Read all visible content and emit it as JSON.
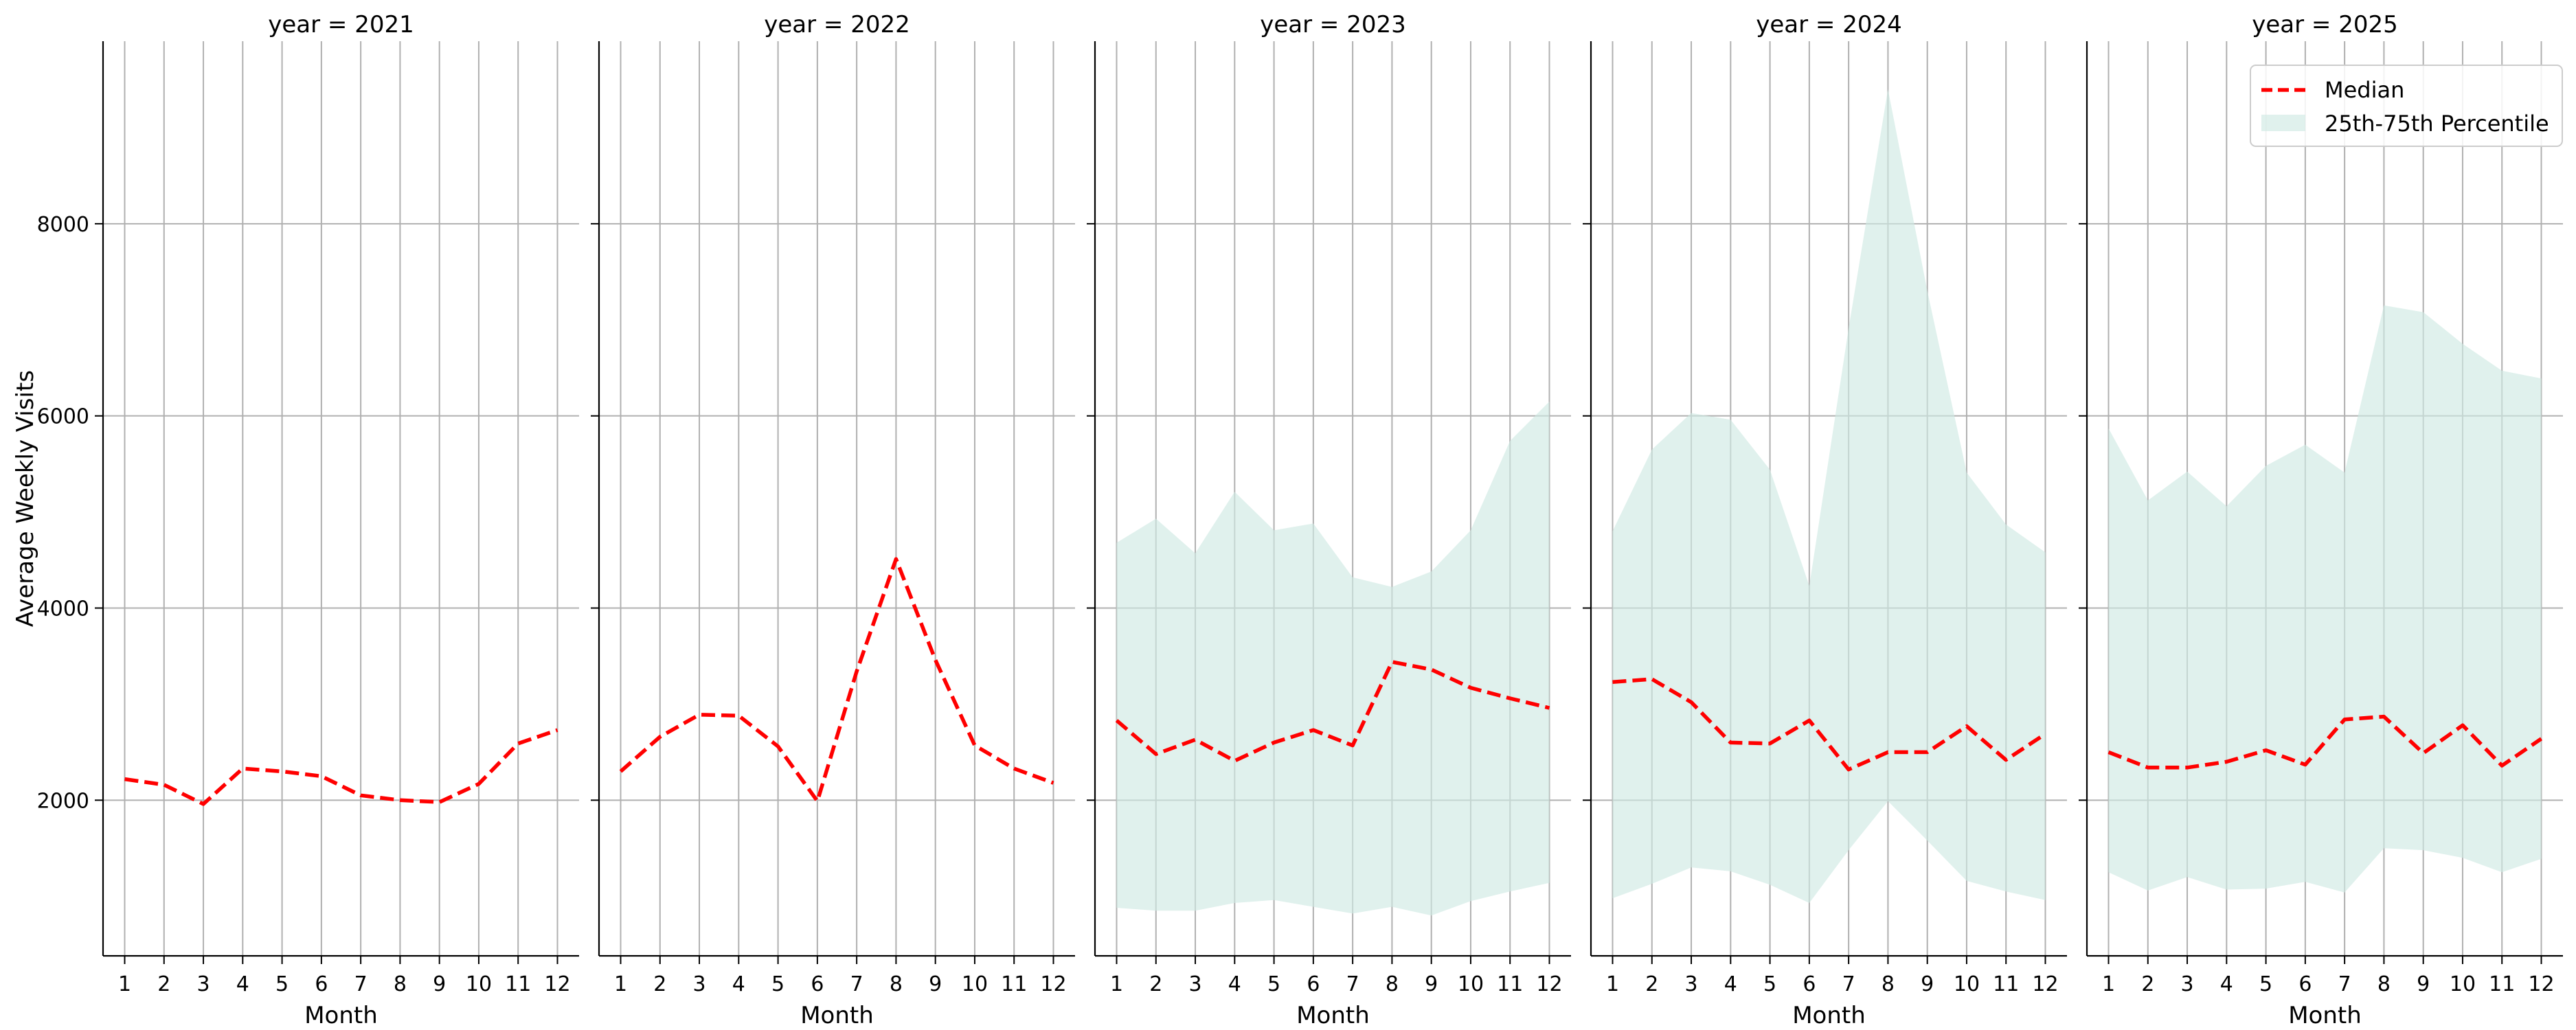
{
  "chart_data": {
    "type": "line",
    "ylabel": "Average Weekly Visits",
    "xlabel": "Month",
    "ylim": [
      380,
      9900
    ],
    "xlim": [
      0.45,
      12.55
    ],
    "yticks": [
      2000,
      4000,
      6000,
      8000
    ],
    "xticks": [
      1,
      2,
      3,
      4,
      5,
      6,
      7,
      8,
      9,
      10,
      11,
      12
    ],
    "grid": true,
    "legend": {
      "position": "top-right",
      "entries": [
        {
          "label": "Median",
          "color": "#ff0000",
          "style": "dashed"
        },
        {
          "label": "25th-75th Percentile",
          "color": "#cfeae3",
          "style": "band"
        }
      ]
    },
    "panels": [
      {
        "title": "year = 2021",
        "median": [
          2220,
          2160,
          1960,
          2330,
          2300,
          2250,
          2050,
          2000,
          1980,
          2170,
          2590,
          2730
        ],
        "p25": null,
        "p75": null
      },
      {
        "title": "year = 2022",
        "median": [
          2300,
          2660,
          2890,
          2880,
          2560,
          1990,
          3340,
          4510,
          3460,
          2570,
          2330,
          2180
        ],
        "p25": null,
        "p75": null
      },
      {
        "title": "year = 2023",
        "median": [
          2830,
          2480,
          2630,
          2410,
          2600,
          2730,
          2570,
          3440,
          3360,
          3170,
          3060,
          2960
        ],
        "p25": [
          880,
          850,
          850,
          930,
          960,
          890,
          820,
          890,
          800,
          950,
          1050,
          1140
        ],
        "p75": [
          4680,
          4930,
          4570,
          5210,
          4810,
          4880,
          4320,
          4220,
          4380,
          4810,
          5740,
          6150
        ]
      },
      {
        "title": "year = 2024",
        "median": [
          3230,
          3260,
          3020,
          2600,
          2590,
          2830,
          2320,
          2500,
          2500,
          2770,
          2420,
          2690
        ],
        "p25": [
          980,
          1130,
          1300,
          1260,
          1120,
          930,
          1480,
          1990,
          1580,
          1160,
          1050,
          960
        ],
        "p75": [
          4800,
          5650,
          6030,
          5960,
          5440,
          4230,
          6910,
          9400,
          7300,
          5410,
          4870,
          4580
        ]
      },
      {
        "title": "year = 2025",
        "median": [
          2500,
          2340,
          2340,
          2400,
          2520,
          2370,
          2840,
          2870,
          2490,
          2780,
          2360,
          2640
        ],
        "p25": [
          1250,
          1060,
          1200,
          1070,
          1080,
          1150,
          1040,
          1500,
          1480,
          1400,
          1250,
          1390
        ],
        "p75": [
          5870,
          5120,
          5420,
          5060,
          5480,
          5700,
          5410,
          7150,
          7080,
          6750,
          6470,
          6390
        ]
      }
    ]
  }
}
